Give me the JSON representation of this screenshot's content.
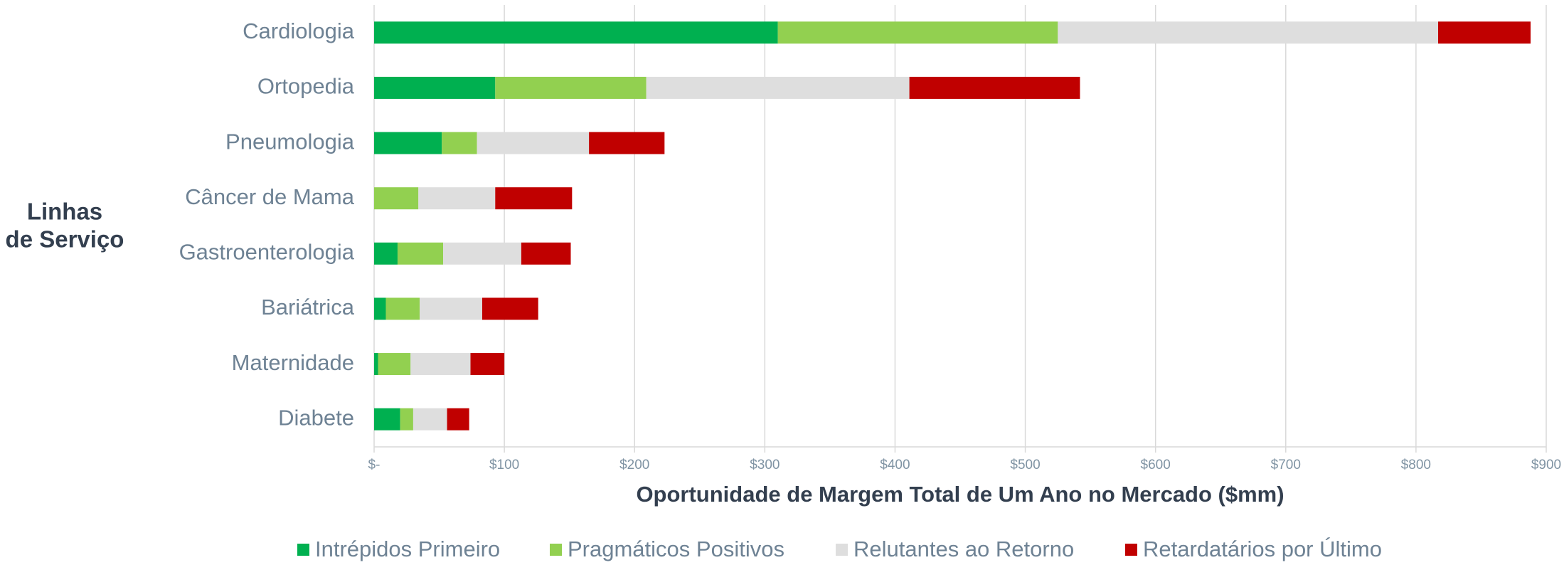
{
  "chart_data": {
    "type": "stacked_bar_horizontal",
    "y_label": [
      "Linhas",
      "de Serviço"
    ],
    "x_label": "Oportunidade de Margem Total de Um Ano no Mercado ($mm)",
    "categories": [
      "Cardiologia",
      "Ortopedia",
      "Pneumologia",
      "Câncer de Mama",
      "Gastroenterologia",
      "Bariátrica",
      "Maternidade",
      "Diabete"
    ],
    "series": [
      {
        "name": "Intrépidos Primeiro",
        "color": "#00b050",
        "values": [
          310,
          93,
          52,
          0,
          18,
          9,
          3,
          20
        ]
      },
      {
        "name": "Pragmáticos Positivos",
        "color": "#92d050",
        "values": [
          215,
          116,
          27,
          34,
          35,
          26,
          25,
          10
        ]
      },
      {
        "name": "Relutantes ao Retorno",
        "color": "#dedede",
        "values": [
          292,
          202,
          86,
          59,
          60,
          48,
          46,
          26
        ]
      },
      {
        "name": "Retardatários por Último",
        "color": "#c00000",
        "values": [
          71,
          131,
          58,
          59,
          38,
          43,
          26,
          17
        ]
      }
    ],
    "xlim": [
      0,
      900
    ],
    "xticks": [
      {
        "value": 0,
        "label": "$-"
      },
      {
        "value": 100,
        "label": "$100"
      },
      {
        "value": 200,
        "label": "$200"
      },
      {
        "value": 300,
        "label": "$300"
      },
      {
        "value": 400,
        "label": "$400"
      },
      {
        "value": 500,
        "label": "$500"
      },
      {
        "value": 600,
        "label": "$600"
      },
      {
        "value": 700,
        "label": "$700"
      },
      {
        "value": 800,
        "label": "$800"
      },
      {
        "value": 900,
        "label": "$900"
      }
    ],
    "grid": true,
    "legend": "bottom"
  }
}
